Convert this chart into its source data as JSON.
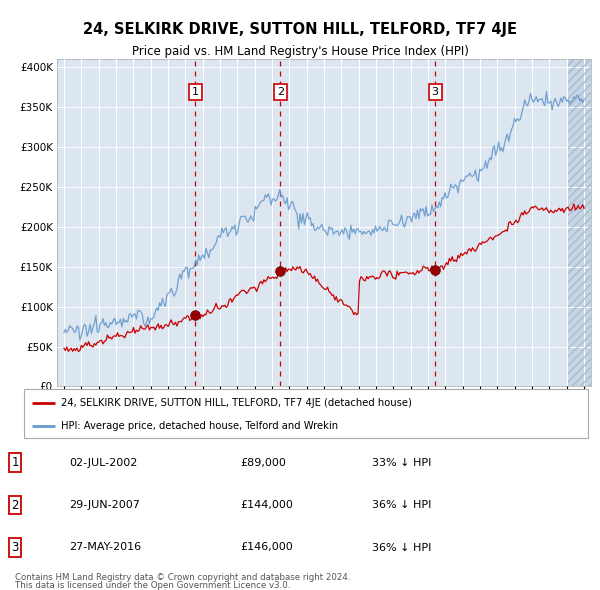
{
  "title": "24, SELKIRK DRIVE, SUTTON HILL, TELFORD, TF7 4JE",
  "subtitle": "Price paid vs. HM Land Registry's House Price Index (HPI)",
  "legend_line1": "24, SELKIRK DRIVE, SUTTON HILL, TELFORD, TF7 4JE (detached house)",
  "legend_line2": "HPI: Average price, detached house, Telford and Wrekin",
  "footer1": "Contains HM Land Registry data © Crown copyright and database right 2024.",
  "footer2": "This data is licensed under the Open Government Licence v3.0.",
  "table_rows": [
    {
      "num": "1",
      "date": "02-JUL-2002",
      "price": "£89,000",
      "hpi": "33% ↓ HPI"
    },
    {
      "num": "2",
      "date": "29-JUN-2007",
      "price": "£144,000",
      "hpi": "36% ↓ HPI"
    },
    {
      "num": "3",
      "date": "27-MAY-2016",
      "price": "£146,000",
      "hpi": "36% ↓ HPI"
    }
  ],
  "sale_years": [
    2002.58,
    2007.49,
    2016.41
  ],
  "sale_prices": [
    89000,
    144000,
    146000
  ],
  "ylim": [
    0,
    410000
  ],
  "xlim_start": 1994.6,
  "xlim_end": 2025.4,
  "yticks": [
    0,
    50000,
    100000,
    150000,
    200000,
    250000,
    300000,
    350000,
    400000
  ],
  "red_color": "#cc0000",
  "blue_color": "#6699cc",
  "background_color": "#dce6f1",
  "hatch_color": "#c8d8e8"
}
